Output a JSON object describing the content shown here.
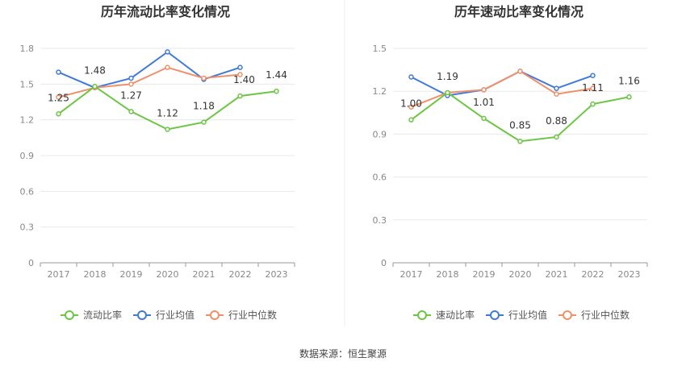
{
  "source_text": "数据来源：恒生聚源",
  "colors": {
    "main": "#6cc644",
    "avg": "#3f7ad9",
    "median": "#f0906a",
    "grid": "#e8e8e8",
    "axis": "#999999"
  },
  "chart_data": [
    {
      "type": "line",
      "title": "历年流动比率变化情况",
      "categories": [
        "2017",
        "2018",
        "2019",
        "2020",
        "2021",
        "2022",
        "2023"
      ],
      "ylim": [
        0,
        1.8
      ],
      "yticks": [
        "0",
        "0.3",
        "0.6",
        "0.9",
        "1.2",
        "1.5",
        "1.8"
      ],
      "grid": true,
      "legend_position": "bottom",
      "series": [
        {
          "name": "流动比率",
          "key": "main",
          "values": [
            1.25,
            1.48,
            1.27,
            1.12,
            1.18,
            1.4,
            1.44
          ],
          "labels": [
            "1.25",
            "1.48",
            "1.27",
            "1.12",
            "1.18",
            "1.40",
            "1.44"
          ]
        },
        {
          "name": "行业均值",
          "key": "avg",
          "values": [
            1.6,
            1.47,
            1.55,
            1.77,
            1.54,
            1.64,
            null
          ]
        },
        {
          "name": "行业中位数",
          "key": "median",
          "values": [
            1.39,
            1.47,
            1.5,
            1.64,
            1.55,
            1.58,
            null
          ]
        }
      ]
    },
    {
      "type": "line",
      "title": "历年速动比率变化情况",
      "categories": [
        "2017",
        "2018",
        "2019",
        "2020",
        "2021",
        "2022",
        "2023"
      ],
      "ylim": [
        0,
        1.5
      ],
      "yticks": [
        "0",
        "0.3",
        "0.6",
        "0.9",
        "1.2",
        "1.5"
      ],
      "grid": true,
      "legend_position": "bottom",
      "series": [
        {
          "name": "速动比率",
          "key": "main",
          "values": [
            1.0,
            1.19,
            1.01,
            0.85,
            0.88,
            1.11,
            1.16
          ],
          "labels": [
            "1.00",
            "1.19",
            "1.01",
            "0.85",
            "0.88",
            "1.11",
            "1.16"
          ]
        },
        {
          "name": "行业均值",
          "key": "avg",
          "values": [
            1.3,
            1.17,
            1.21,
            1.34,
            1.22,
            1.31,
            null
          ]
        },
        {
          "name": "行业中位数",
          "key": "median",
          "values": [
            1.09,
            1.19,
            1.21,
            1.34,
            1.18,
            1.22,
            null
          ]
        }
      ]
    }
  ]
}
